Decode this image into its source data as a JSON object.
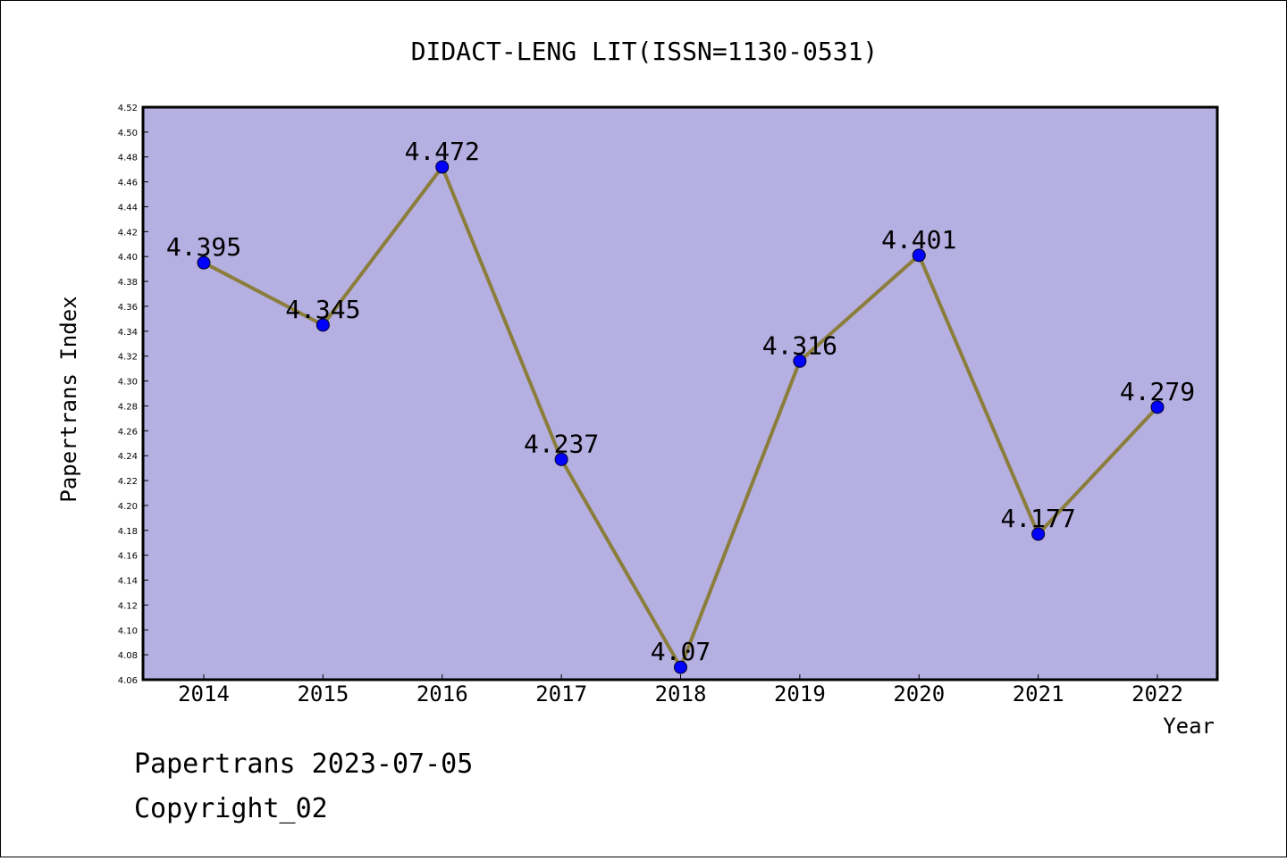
{
  "chart_data": {
    "type": "line",
    "title": "DIDACT-LENG LIT(ISSN=1130-0531)",
    "xlabel": "Year",
    "ylabel": "Papertrans Index",
    "categories": [
      "2014",
      "2015",
      "2016",
      "2017",
      "2018",
      "2019",
      "2020",
      "2021",
      "2022"
    ],
    "series": [
      {
        "values": [
          4.395,
          4.345,
          4.472,
          4.237,
          4.07,
          4.316,
          4.401,
          4.177,
          4.279
        ],
        "labels": [
          "4.395",
          "4.345",
          "4.472",
          "4.237",
          "4.07",
          "4.316",
          "4.401",
          "4.177",
          "4.279"
        ],
        "line_color": "#8b7d3a",
        "marker_color": "#0000ff"
      }
    ],
    "ylim": [
      4.06,
      4.52
    ],
    "yticks": [
      "4.06",
      "4.08",
      "4.10",
      "4.12",
      "4.14",
      "4.16",
      "4.18",
      "4.20",
      "4.22",
      "4.24",
      "4.26",
      "4.28",
      "4.30",
      "4.32",
      "4.34",
      "4.36",
      "4.38",
      "4.40",
      "4.42",
      "4.44",
      "4.46",
      "4.48",
      "4.50",
      "4.52"
    ],
    "plot_background": "#b5afe2",
    "grid": false,
    "legend": "none"
  },
  "footer": {
    "line1": "Papertrans 2023-07-05",
    "line2": "Copyright_02"
  }
}
